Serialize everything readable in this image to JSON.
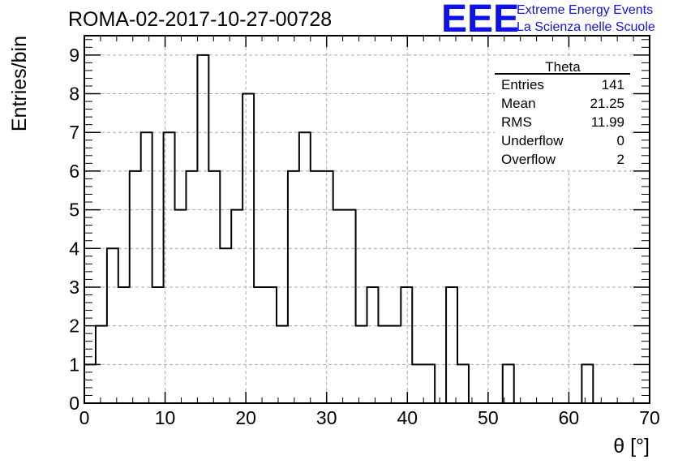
{
  "header": {
    "title": "ROMA-02-2017-10-27-00728"
  },
  "logo": {
    "mark": "EEE",
    "line1": "Extreme Energy Events",
    "line2": "La Scienza nelle Scuole",
    "color": "#1010ee"
  },
  "stats_box": {
    "title": "Theta",
    "rows": [
      {
        "label": "Entries",
        "value": "141"
      },
      {
        "label": "Mean",
        "value": "21.25"
      },
      {
        "label": "RMS",
        "value": "11.99"
      },
      {
        "label": "Underflow",
        "value": "0"
      },
      {
        "label": "Overflow",
        "value": "2"
      }
    ]
  },
  "chart_data": {
    "type": "bar",
    "histogram": true,
    "xlabel": "θ [°]",
    "ylabel": "Entries/bin",
    "xlim": [
      0,
      70
    ],
    "ylim": [
      0,
      9.5
    ],
    "bin_width": 1.4,
    "bin_edges_start": 0,
    "x_ticks": [
      "0",
      "10",
      "20",
      "30",
      "40",
      "50",
      "60",
      "70"
    ],
    "y_ticks": [
      "0",
      "1",
      "2",
      "3",
      "4",
      "5",
      "6",
      "7",
      "8",
      "9"
    ],
    "grid": true,
    "values": [
      1,
      2,
      4,
      3,
      6,
      7,
      3,
      7,
      5,
      6,
      9,
      6,
      4,
      5,
      8,
      3,
      3,
      2,
      6,
      7,
      6,
      6,
      5,
      5,
      2,
      3,
      2,
      2,
      3,
      1,
      1,
      0,
      3,
      1,
      0,
      0,
      0,
      1,
      0,
      0,
      0,
      0,
      0,
      0,
      1,
      0,
      0,
      0,
      0,
      0
    ]
  }
}
